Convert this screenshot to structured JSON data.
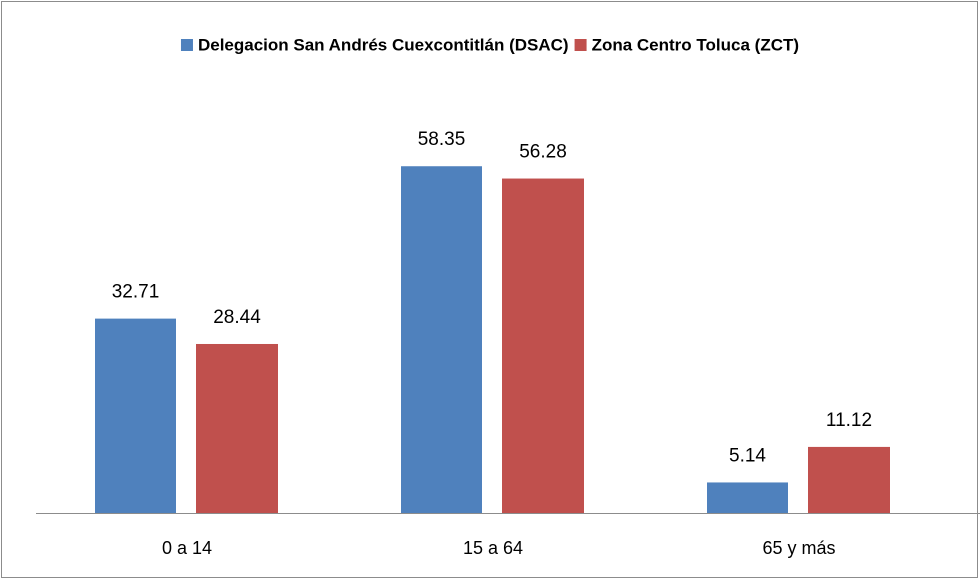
{
  "chart_data": {
    "type": "bar",
    "categories": [
      "0 a 14",
      "15 a 64",
      "65 y más"
    ],
    "series": [
      {
        "name": "Delegacion San Andrés Cuexcontitlán (DSAC)",
        "color": "#4f81bd",
        "values": [
          32.71,
          58.35,
          5.14
        ]
      },
      {
        "name": "Zona Centro Toluca (ZCT)",
        "color": "#c0504d",
        "values": [
          28.44,
          56.28,
          11.12
        ]
      }
    ],
    "ylim": [
      0,
      70
    ],
    "legend": "top"
  }
}
